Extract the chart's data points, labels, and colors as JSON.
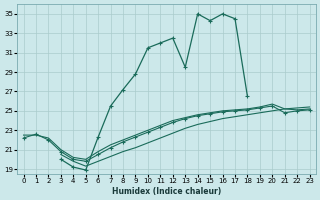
{
  "xlabel": "Humidex (Indice chaleur)",
  "bg_color": "#cce8ea",
  "grid_color": "#aacccc",
  "line_color": "#1a6b5a",
  "xlim": [
    -0.5,
    23.5
  ],
  "ylim": [
    18.5,
    36.0
  ],
  "xticks": [
    0,
    1,
    2,
    3,
    4,
    5,
    6,
    7,
    8,
    9,
    10,
    11,
    12,
    13,
    14,
    15,
    16,
    17,
    18,
    19,
    20,
    21,
    22,
    23
  ],
  "yticks": [
    19,
    21,
    23,
    25,
    27,
    29,
    31,
    33,
    35
  ],
  "curve_main_x": [
    3,
    4,
    5,
    6,
    7,
    8,
    9,
    10,
    11,
    12,
    13,
    14,
    15,
    16,
    17,
    18
  ],
  "curve_main_y": [
    20.0,
    19.2,
    18.9,
    22.3,
    25.5,
    27.2,
    28.8,
    31.5,
    32.0,
    32.5,
    29.5,
    35.0,
    34.3,
    35.0,
    34.5,
    26.5
  ],
  "curve_high_x": [
    0,
    1,
    2,
    3,
    4,
    5,
    6,
    7,
    8,
    9,
    10,
    11,
    12,
    13,
    14,
    15,
    16,
    17,
    18,
    19,
    20,
    21,
    22,
    23
  ],
  "curve_high_y": [
    22.2,
    22.6,
    22.0,
    20.8,
    20.0,
    19.8,
    20.5,
    21.2,
    21.8,
    22.3,
    22.8,
    23.3,
    23.8,
    24.2,
    24.5,
    24.7,
    24.9,
    25.0,
    25.1,
    25.3,
    25.5,
    24.8,
    25.0,
    25.1
  ],
  "curve_mid_x": [
    0,
    1,
    2,
    3,
    4,
    5,
    6,
    7,
    8,
    9,
    10,
    11,
    12,
    13,
    14,
    15,
    16,
    17,
    18,
    19,
    20,
    21,
    22,
    23
  ],
  "curve_mid_y": [
    22.5,
    22.5,
    22.2,
    21.0,
    20.2,
    20.0,
    20.8,
    21.5,
    22.0,
    22.5,
    23.0,
    23.5,
    24.0,
    24.3,
    24.6,
    24.8,
    25.0,
    25.1,
    25.2,
    25.4,
    25.7,
    25.2,
    25.3,
    25.4
  ],
  "curve_low_x": [
    3,
    4,
    5,
    6,
    7,
    8,
    9,
    10,
    11,
    12,
    13,
    14,
    15,
    16,
    17,
    18,
    19,
    20,
    21,
    22,
    23
  ],
  "curve_low_y": [
    20.5,
    19.8,
    19.3,
    19.8,
    20.3,
    20.8,
    21.2,
    21.7,
    22.2,
    22.7,
    23.2,
    23.6,
    23.9,
    24.2,
    24.4,
    24.6,
    24.8,
    25.0,
    25.2,
    25.1,
    25.2
  ]
}
